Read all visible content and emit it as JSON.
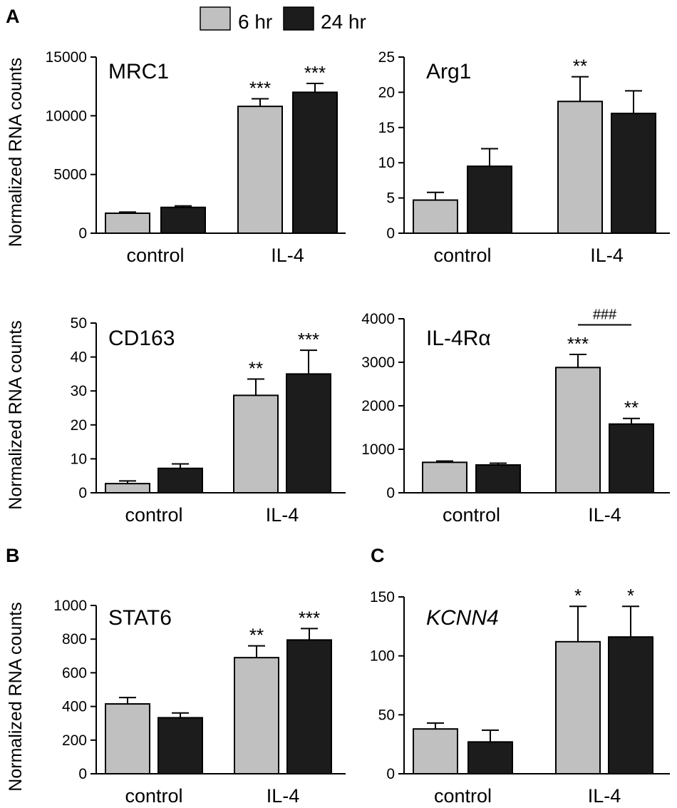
{
  "panel_labels": [
    "A",
    "B",
    "C"
  ],
  "ylabel": "Normalized RNA counts",
  "legend": [
    {
      "label": "6 hr",
      "color": "#c0c0c0"
    },
    {
      "label": "24 hr",
      "color": "#1c1c1c"
    }
  ],
  "colors": {
    "bar_6hr": "#c0c0c0",
    "bar_24hr": "#1c1c1c",
    "axis": "#000000"
  },
  "chart_data": [
    {
      "type": "bar",
      "title": "MRC1",
      "title_italic": false,
      "categories": [
        "control",
        "IL-4"
      ],
      "ylim": [
        0,
        15000
      ],
      "yticks": [
        0,
        5000,
        10000,
        15000
      ],
      "ylabel": "Normalized RNA counts",
      "series": [
        {
          "name": "6 hr",
          "values": [
            1700,
            10800
          ],
          "errors": [
            100,
            650
          ],
          "annotations": [
            "",
            "***"
          ]
        },
        {
          "name": "24 hr",
          "values": [
            2200,
            12000
          ],
          "errors": [
            120,
            750
          ],
          "annotations": [
            "",
            "***"
          ]
        }
      ]
    },
    {
      "type": "bar",
      "title": "Arg1",
      "title_italic": false,
      "categories": [
        "control",
        "IL-4"
      ],
      "ylim": [
        0,
        25
      ],
      "yticks": [
        0,
        5,
        10,
        15,
        20,
        25
      ],
      "ylabel": "",
      "series": [
        {
          "name": "6 hr",
          "values": [
            4.7,
            18.7
          ],
          "errors": [
            1.1,
            3.5
          ],
          "annotations": [
            "",
            "**"
          ]
        },
        {
          "name": "24 hr",
          "values": [
            9.5,
            17.0
          ],
          "errors": [
            2.5,
            3.2
          ],
          "annotations": [
            "",
            ""
          ]
        }
      ]
    },
    {
      "type": "bar",
      "title": "CD163",
      "title_italic": false,
      "categories": [
        "control",
        "IL-4"
      ],
      "ylim": [
        0,
        50
      ],
      "yticks": [
        0,
        10,
        20,
        30,
        40,
        50
      ],
      "ylabel": "Normalized RNA counts",
      "series": [
        {
          "name": "6 hr",
          "values": [
            2.7,
            28.7
          ],
          "errors": [
            0.8,
            4.8
          ],
          "annotations": [
            "",
            "**"
          ]
        },
        {
          "name": "24 hr",
          "values": [
            7.2,
            35.0
          ],
          "errors": [
            1.3,
            7.0
          ],
          "annotations": [
            "",
            "***"
          ]
        }
      ]
    },
    {
      "type": "bar",
      "title": "IL-4Rα",
      "title_italic": false,
      "categories": [
        "control",
        "IL-4"
      ],
      "ylim": [
        0,
        4000
      ],
      "yticks": [
        0,
        1000,
        2000,
        3000,
        4000
      ],
      "ylabel": "",
      "series": [
        {
          "name": "6 hr",
          "values": [
            700,
            2880
          ],
          "errors": [
            30,
            300
          ],
          "annotations": [
            "",
            "***"
          ]
        },
        {
          "name": "24 hr",
          "values": [
            640,
            1580
          ],
          "errors": [
            40,
            130
          ],
          "annotations": [
            "",
            "**"
          ]
        }
      ],
      "bracket": {
        "label": "###",
        "category": "IL-4",
        "at_value": 3860
      }
    },
    {
      "type": "bar",
      "title": "STAT6",
      "title_italic": false,
      "categories": [
        "control",
        "IL-4"
      ],
      "ylim": [
        0,
        1000
      ],
      "yticks": [
        0,
        200,
        400,
        600,
        800,
        1000
      ],
      "ylabel": "Normalized RNA counts",
      "series": [
        {
          "name": "6 hr",
          "values": [
            415,
            690
          ],
          "errors": [
            38,
            70
          ],
          "annotations": [
            "",
            "**"
          ]
        },
        {
          "name": "24 hr",
          "values": [
            333,
            795
          ],
          "errors": [
            28,
            68
          ],
          "annotations": [
            "",
            "***"
          ]
        }
      ]
    },
    {
      "type": "bar",
      "title": "KCNN4",
      "title_italic": true,
      "categories": [
        "control",
        "IL-4"
      ],
      "ylim": [
        0,
        150
      ],
      "yticks": [
        0,
        50,
        100,
        150
      ],
      "ylabel": "",
      "series": [
        {
          "name": "6 hr",
          "values": [
            38,
            112
          ],
          "errors": [
            5,
            30
          ],
          "annotations": [
            "",
            "*"
          ]
        },
        {
          "name": "24 hr",
          "values": [
            27,
            116
          ],
          "errors": [
            10,
            26
          ],
          "annotations": [
            "",
            "*"
          ]
        }
      ]
    }
  ]
}
